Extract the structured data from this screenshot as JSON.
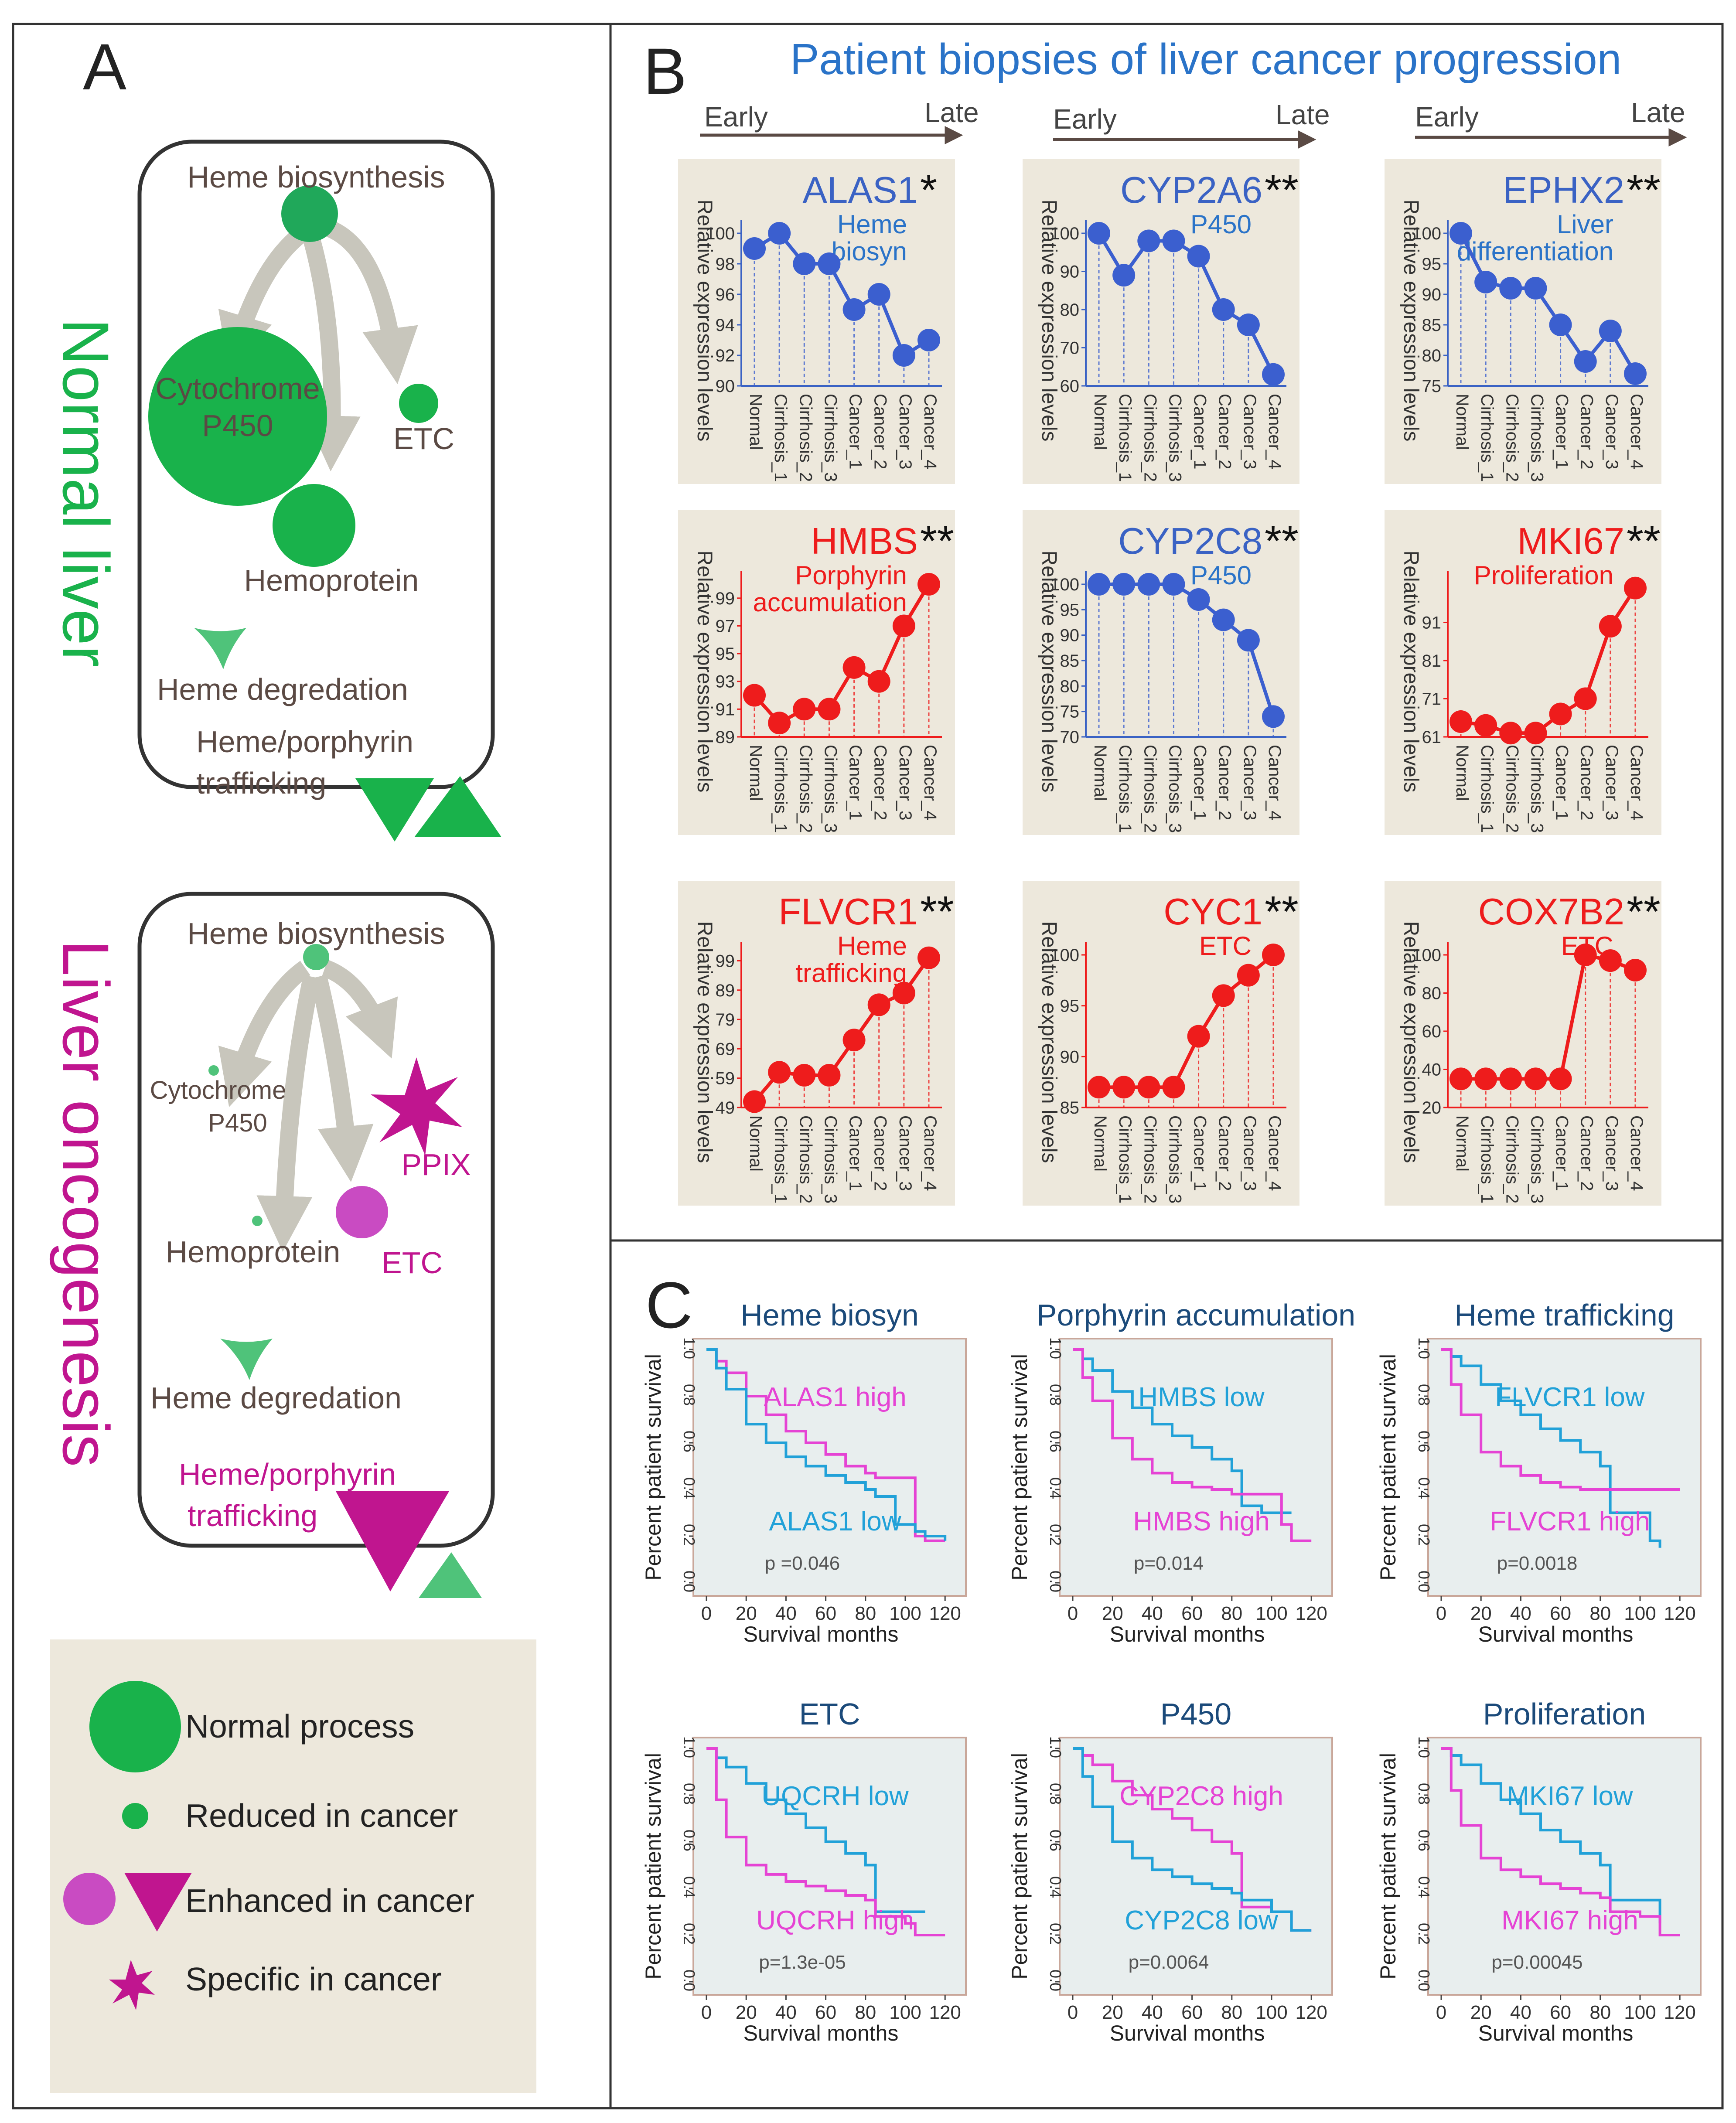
{
  "colors": {
    "green": "#19b24b",
    "lightgreen": "#4fc37a",
    "magenta": "#c0158f",
    "pink": "#e543d4",
    "blue": "#3a62c4",
    "red": "#ee1c1c",
    "cyan": "#21a1d8",
    "gray": "#c8c6bc",
    "panel_bg": "#ede8dc",
    "text": "#4a4a4a",
    "navy": "#1b4a7a",
    "title_blue": "#2a73c8"
  },
  "panel_a": {
    "letter": "A",
    "normal": {
      "title": "Normal liver",
      "labels": {
        "biosynthesis": "Heme biosynthesis",
        "p450_line1": "Cytochrome",
        "p450_line2": "P450",
        "etc": "ETC",
        "hemoprotein": "Hemoprotein",
        "degradation": "Heme degredation",
        "traffic_line1": "Heme/porphyrin",
        "traffic_line2": "trafficking"
      }
    },
    "onco": {
      "title": "Liver oncogenesis",
      "labels": {
        "biosynthesis": "Heme biosynthesis",
        "p450_line1": "Cytochrome",
        "p450_line2": "P450",
        "ppix": "PPIX",
        "hemoprotein": "Hemoprotein",
        "etc": "ETC",
        "degradation": "Heme degredation",
        "traffic_line1": "Heme/porphyrin",
        "traffic_line2": "trafficking"
      }
    },
    "legend": {
      "normal": "Normal process",
      "reduced": "Reduced in cancer",
      "enhanced": "Enhanced in cancer",
      "specific": "Specific in cancer"
    },
    "icons": {
      "node": "circle-node",
      "deg": "triangle-node",
      "traffic_out": "down-triangle-icon",
      "traffic_in": "up-triangle-icon",
      "ppix": "star-icon"
    }
  },
  "panel_b": {
    "letter": "B",
    "title": "Patient biopsies of liver cancer progression",
    "early": "Early",
    "late": "Late"
  },
  "panel_c": {
    "letter": "C",
    "xlabel": "Survival months",
    "ylabel": "Percent patient survival"
  },
  "chart_data": [
    {
      "type": "line",
      "gene": "ALAS1",
      "stars": "*",
      "color": "blue",
      "note": [
        "Heme",
        "biosyn"
      ],
      "ylabel": "Relative expression levels",
      "categories": [
        "Normal",
        "Cirrhosis_1",
        "Cirrhosis_2",
        "Cirrhosis_3",
        "Cancer_1",
        "Cancer_2",
        "Cancer_3",
        "Cancer_4"
      ],
      "values": [
        99,
        100,
        98,
        98,
        95,
        96,
        92,
        93
      ],
      "yticks": [
        90,
        92,
        94,
        96,
        98,
        100
      ],
      "ylim": [
        90,
        100
      ]
    },
    {
      "type": "line",
      "gene": "CYP2A6",
      "stars": "**",
      "color": "blue",
      "note": [
        "P450"
      ],
      "ylabel": "Relative expression levels",
      "categories": [
        "Normal",
        "Cirrhosis_1",
        "Cirrhosis_2",
        "Cirrhosis_3",
        "Cancer_1",
        "Cancer_2",
        "Cancer_3",
        "Cancer_4"
      ],
      "values": [
        100,
        89,
        98,
        98,
        94,
        80,
        76,
        63
      ],
      "yticks": [
        60,
        70,
        80,
        90,
        100
      ],
      "ylim": [
        60,
        100
      ]
    },
    {
      "type": "line",
      "gene": "EPHX2",
      "stars": "**",
      "color": "blue",
      "note": [
        "Liver",
        "differentiation"
      ],
      "ylabel": "Relative expression levels",
      "categories": [
        "Normal",
        "Cirrhosis_1",
        "Cirrhosis_2",
        "Cirrhosis_3",
        "Cancer_1",
        "Cancer_2",
        "Cancer_3",
        "Cancer_4"
      ],
      "values": [
        100,
        92,
        91,
        91,
        85,
        79,
        84,
        77
      ],
      "yticks": [
        75,
        80,
        85,
        90,
        95,
        100
      ],
      "ylim": [
        75,
        100
      ]
    },
    {
      "type": "line",
      "gene": "HMBS",
      "stars": "**",
      "color": "red",
      "note": [
        "Porphyrin",
        "accumulation"
      ],
      "ylabel": "Relative expression levels",
      "categories": [
        "Normal",
        "Cirrhosis_1",
        "Cirrhosis_2",
        "Cirrhosis_3",
        "Cancer_1",
        "Cancer_2",
        "Cancer_3",
        "Cancer_4"
      ],
      "values": [
        92,
        90,
        91,
        91,
        94,
        93,
        97,
        100
      ],
      "yticks": [
        89,
        91,
        93,
        95,
        97,
        99
      ],
      "ylim": [
        89,
        100
      ]
    },
    {
      "type": "line",
      "gene": "CYP2C8",
      "stars": "**",
      "color": "blue",
      "note": [
        "P450"
      ],
      "ylabel": "Relative expression levels",
      "categories": [
        "Normal",
        "Cirrhosis_1",
        "Cirrhosis_2",
        "Cirrhosis_3",
        "Cancer_1",
        "Cancer_2",
        "Cancer_3",
        "Cancer_4"
      ],
      "values": [
        100,
        100,
        100,
        100,
        97,
        93,
        89,
        74
      ],
      "yticks": [
        70,
        75,
        80,
        85,
        90,
        95,
        100
      ],
      "ylim": [
        70,
        100
      ]
    },
    {
      "type": "line",
      "gene": "MKI67",
      "stars": "**",
      "color": "red",
      "note": [
        "Proliferation"
      ],
      "ylabel": "Relative expression levels",
      "categories": [
        "Normal",
        "Cirrhosis_1",
        "Cirrhosis_2",
        "Cirrhosis_3",
        "Cancer_1",
        "Cancer_2",
        "Cancer_3",
        "Cancer_4"
      ],
      "values": [
        65,
        64,
        62,
        62,
        67,
        71,
        90,
        100
      ],
      "yticks": [
        61,
        71,
        81,
        91
      ],
      "ylim": [
        61,
        101
      ]
    },
    {
      "type": "line",
      "gene": "FLVCR1",
      "stars": "**",
      "color": "red",
      "note": [
        "Heme",
        "trafficking"
      ],
      "ylabel": "Relative expression levels",
      "categories": [
        "Normal",
        "Cirrhosis_1",
        "Cirrhosis_2",
        "Cirrhosis_3",
        "Cancer_1",
        "Cancer_2",
        "Cancer_3",
        "Cancer_4"
      ],
      "values": [
        51,
        61,
        60,
        60,
        72,
        84,
        88,
        100
      ],
      "yticks": [
        49,
        59,
        69,
        79,
        89,
        99
      ],
      "ylim": [
        49,
        101
      ]
    },
    {
      "type": "line",
      "gene": "CYC1",
      "stars": "**",
      "color": "red",
      "note": [
        "ETC"
      ],
      "ylabel": "Relative expression levels",
      "categories": [
        "Normal",
        "Cirrhosis_1",
        "Cirrhosis_2",
        "Cirrhosis_3",
        "Cancer_1",
        "Cancer_2",
        "Cancer_3",
        "Cancer_4"
      ],
      "values": [
        87,
        87,
        87,
        87,
        92,
        96,
        98,
        100
      ],
      "yticks": [
        85,
        90,
        95,
        100
      ],
      "ylim": [
        85,
        100
      ]
    },
    {
      "type": "line",
      "gene": "COX7B2",
      "stars": "**",
      "color": "red",
      "note": [
        "ETC"
      ],
      "ylabel": "Relative expression levels",
      "categories": [
        "Normal",
        "Cirrhosis_1",
        "Cirrhosis_2",
        "Cirrhosis_3",
        "Cancer_1",
        "Cancer_2",
        "Cancer_3",
        "Cancer_4"
      ],
      "values": [
        35,
        35,
        35,
        35,
        35,
        100,
        97,
        92
      ],
      "yticks": [
        20,
        40,
        60,
        80,
        100
      ],
      "ylim": [
        20,
        100
      ]
    },
    {
      "type": "line",
      "title": "Heme biosyn",
      "xlabel": "Survival months",
      "ylabel": "Percent patient survival",
      "pvalue": "p =0.046",
      "xlim": [
        0,
        125
      ],
      "ylim": [
        0,
        1
      ],
      "xticks": [
        0,
        20,
        40,
        60,
        80,
        100,
        120
      ],
      "yticks": [
        0.0,
        0.2,
        0.4,
        0.6,
        0.8,
        1.0
      ],
      "series": [
        {
          "name": "ALAS1 high",
          "color": "pink",
          "x": [
            0,
            5,
            10,
            20,
            30,
            40,
            50,
            60,
            70,
            80,
            85,
            100,
            105,
            110,
            120
          ],
          "y": [
            1,
            0.95,
            0.9,
            0.8,
            0.72,
            0.65,
            0.6,
            0.55,
            0.5,
            0.47,
            0.45,
            0.45,
            0.2,
            0.18,
            0.18
          ]
        },
        {
          "name": "ALAS1 low",
          "color": "cyan",
          "x": [
            0,
            5,
            10,
            20,
            30,
            40,
            50,
            60,
            70,
            80,
            85,
            95,
            105,
            110,
            120
          ],
          "y": [
            1,
            0.92,
            0.83,
            0.68,
            0.6,
            0.54,
            0.5,
            0.46,
            0.43,
            0.4,
            0.37,
            0.25,
            0.22,
            0.2,
            0.18
          ]
        }
      ]
    },
    {
      "type": "line",
      "title": "Porphyrin accumulation",
      "xlabel": "Survival months",
      "ylabel": "Percent patient survival",
      "pvalue": "p=0.014",
      "xlim": [
        0,
        125
      ],
      "ylim": [
        0,
        1
      ],
      "xticks": [
        0,
        20,
        40,
        60,
        80,
        100,
        120
      ],
      "yticks": [
        0.0,
        0.2,
        0.4,
        0.6,
        0.8,
        1.0
      ],
      "series": [
        {
          "name": "HMBS low",
          "color": "cyan",
          "x": [
            0,
            5,
            10,
            20,
            30,
            40,
            50,
            60,
            70,
            80,
            85,
            95,
            105,
            110
          ],
          "y": [
            1,
            0.96,
            0.91,
            0.82,
            0.75,
            0.68,
            0.63,
            0.58,
            0.53,
            0.48,
            0.33,
            0.3,
            0.3,
            0.3
          ]
        },
        {
          "name": "HMBS high",
          "color": "pink",
          "x": [
            0,
            5,
            10,
            20,
            30,
            40,
            50,
            60,
            70,
            80,
            85,
            100,
            105,
            110,
            120
          ],
          "y": [
            1,
            0.88,
            0.78,
            0.62,
            0.53,
            0.47,
            0.43,
            0.41,
            0.4,
            0.38,
            0.38,
            0.38,
            0.25,
            0.18,
            0.18
          ]
        }
      ]
    },
    {
      "type": "line",
      "title": "Heme trafficking",
      "xlabel": "Survival months",
      "ylabel": "Percent patient survival",
      "pvalue": "p=0.0018",
      "xlim": [
        0,
        125
      ],
      "ylim": [
        0,
        1
      ],
      "xticks": [
        0,
        20,
        40,
        60,
        80,
        100,
        120
      ],
      "yticks": [
        0.0,
        0.2,
        0.4,
        0.6,
        0.8,
        1.0
      ],
      "series": [
        {
          "name": "FLVCR1 low",
          "color": "cyan",
          "x": [
            0,
            5,
            10,
            20,
            30,
            40,
            50,
            60,
            70,
            80,
            85,
            100,
            105,
            110
          ],
          "y": [
            1,
            0.97,
            0.93,
            0.85,
            0.78,
            0.72,
            0.66,
            0.61,
            0.56,
            0.5,
            0.3,
            0.3,
            0.18,
            0.15
          ]
        },
        {
          "name": "FLVCR1 high",
          "color": "pink",
          "x": [
            0,
            5,
            10,
            20,
            30,
            40,
            50,
            60,
            70,
            80,
            100,
            120
          ],
          "y": [
            1,
            0.85,
            0.72,
            0.56,
            0.5,
            0.46,
            0.43,
            0.41,
            0.4,
            0.4,
            0.4,
            0.4
          ]
        }
      ]
    },
    {
      "type": "line",
      "title": "ETC",
      "xlabel": "Survival months",
      "ylabel": "Percent patient survival",
      "pvalue": "p=1.3e-05",
      "xlim": [
        0,
        125
      ],
      "ylim": [
        0,
        1
      ],
      "xticks": [
        0,
        20,
        40,
        60,
        80,
        100,
        120
      ],
      "yticks": [
        0.0,
        0.2,
        0.4,
        0.6,
        0.8,
        1.0
      ],
      "series": [
        {
          "name": "UQCRH low",
          "color": "cyan",
          "x": [
            0,
            5,
            10,
            20,
            30,
            40,
            50,
            60,
            70,
            80,
            85,
            100,
            110
          ],
          "y": [
            1,
            0.96,
            0.92,
            0.85,
            0.78,
            0.72,
            0.66,
            0.6,
            0.55,
            0.5,
            0.3,
            0.3,
            0.3
          ]
        },
        {
          "name": "UQCRH high",
          "color": "pink",
          "x": [
            0,
            5,
            10,
            20,
            30,
            40,
            50,
            60,
            70,
            80,
            85,
            100,
            105,
            120
          ],
          "y": [
            1,
            0.78,
            0.62,
            0.5,
            0.46,
            0.43,
            0.41,
            0.39,
            0.37,
            0.35,
            0.28,
            0.25,
            0.2,
            0.2
          ]
        }
      ]
    },
    {
      "type": "line",
      "title": "P450",
      "xlabel": "Survival months",
      "ylabel": "Percent patient survival",
      "pvalue": "p=0.0064",
      "xlim": [
        0,
        125
      ],
      "ylim": [
        0,
        1
      ],
      "xticks": [
        0,
        20,
        40,
        60,
        80,
        100,
        120
      ],
      "yticks": [
        0.0,
        0.2,
        0.4,
        0.6,
        0.8,
        1.0
      ],
      "series": [
        {
          "name": "CYP2C8 high",
          "color": "pink",
          "x": [
            0,
            5,
            10,
            20,
            30,
            40,
            50,
            60,
            70,
            80,
            85,
            100,
            110,
            120
          ],
          "y": [
            1,
            0.97,
            0.93,
            0.86,
            0.8,
            0.74,
            0.7,
            0.65,
            0.6,
            0.55,
            0.32,
            0.3,
            0.22,
            0.22
          ]
        },
        {
          "name": "CYP2C8 low",
          "color": "cyan",
          "x": [
            0,
            5,
            10,
            20,
            30,
            40,
            50,
            60,
            70,
            80,
            85,
            100,
            110,
            120
          ],
          "y": [
            1,
            0.88,
            0.75,
            0.6,
            0.53,
            0.48,
            0.45,
            0.42,
            0.4,
            0.38,
            0.35,
            0.3,
            0.22,
            0.22
          ]
        }
      ]
    },
    {
      "type": "line",
      "title": "Proliferation",
      "xlabel": "Survival months",
      "ylabel": "Percent patient survival",
      "pvalue": "p=0.00045",
      "xlim": [
        0,
        125
      ],
      "ylim": [
        0,
        1
      ],
      "xticks": [
        0,
        20,
        40,
        60,
        80,
        100,
        120
      ],
      "yticks": [
        0.0,
        0.2,
        0.4,
        0.6,
        0.8,
        1.0
      ],
      "series": [
        {
          "name": "MKI67 low",
          "color": "cyan",
          "x": [
            0,
            5,
            10,
            20,
            30,
            40,
            50,
            60,
            70,
            80,
            85,
            100,
            110
          ],
          "y": [
            1,
            0.97,
            0.93,
            0.85,
            0.78,
            0.72,
            0.65,
            0.6,
            0.55,
            0.5,
            0.35,
            0.35,
            0.25
          ]
        },
        {
          "name": "MKI67 high",
          "color": "pink",
          "x": [
            0,
            5,
            10,
            20,
            30,
            40,
            50,
            60,
            70,
            80,
            85,
            100,
            110,
            120
          ],
          "y": [
            1,
            0.82,
            0.67,
            0.53,
            0.48,
            0.45,
            0.42,
            0.4,
            0.38,
            0.36,
            0.3,
            0.28,
            0.2,
            0.2
          ]
        }
      ]
    }
  ]
}
